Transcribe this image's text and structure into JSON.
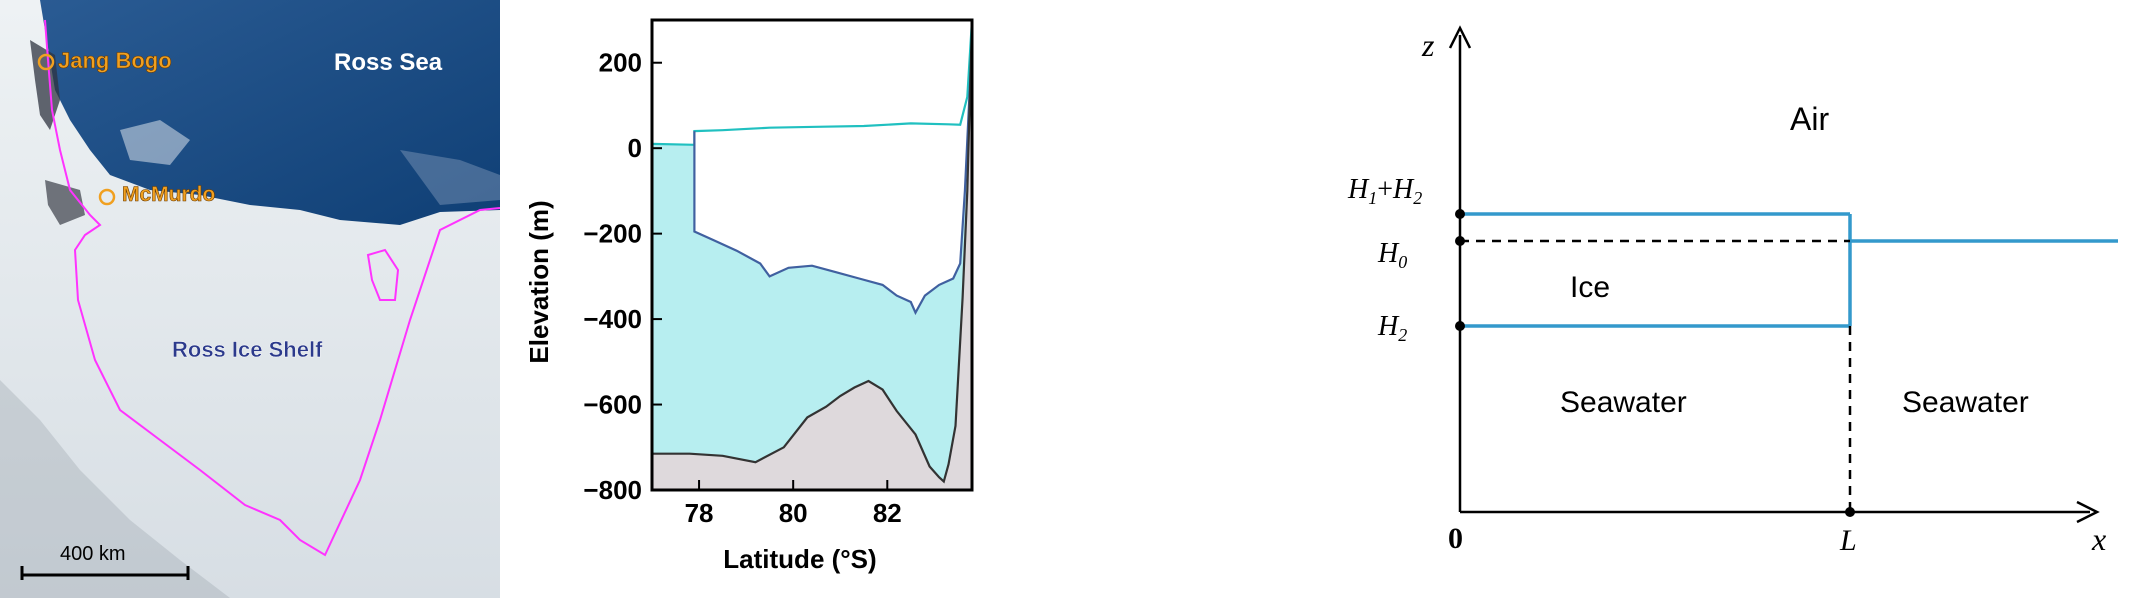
{
  "map": {
    "labels": {
      "jang_bogo": "Jang Bogo",
      "ross_sea": "Ross Sea",
      "mcmurdo": "McMurdo",
      "ross_ice_shelf": "Ross Ice Shelf",
      "scale": "400 km"
    },
    "colors": {
      "sea": "#1f4f86",
      "ice": "#e6ecef",
      "boundary": "#ff33ff",
      "station": "#f0a020"
    }
  },
  "chart_data": {
    "type": "area",
    "xlabel": "Latitude (°S)",
    "ylabel": "Elevation (m)",
    "xlim": [
      77,
      83.8
    ],
    "ylim": [
      -800,
      300
    ],
    "xticks": [
      78,
      80,
      82
    ],
    "yticks": [
      200,
      0,
      -200,
      -400,
      -600,
      -800
    ],
    "series": [
      {
        "id": "ice_surface",
        "color": "#20c0c0",
        "points": [
          [
            77,
            10
          ],
          [
            77.9,
            8
          ],
          [
            77.9,
            40
          ],
          [
            78.5,
            42
          ],
          [
            79.5,
            48
          ],
          [
            80.5,
            50
          ],
          [
            81.5,
            52
          ],
          [
            82.5,
            58
          ],
          [
            83.3,
            56
          ],
          [
            83.55,
            55
          ],
          [
            83.7,
            120
          ],
          [
            83.8,
            300
          ]
        ]
      },
      {
        "id": "ice_base",
        "color": "#4060a0",
        "points": [
          [
            77.9,
            40
          ],
          [
            77.9,
            -195
          ],
          [
            78.3,
            -215
          ],
          [
            78.8,
            -240
          ],
          [
            79.3,
            -270
          ],
          [
            79.5,
            -300
          ],
          [
            79.9,
            -280
          ],
          [
            80.4,
            -275
          ],
          [
            80.9,
            -290
          ],
          [
            81.4,
            -305
          ],
          [
            81.9,
            -320
          ],
          [
            82.2,
            -345
          ],
          [
            82.5,
            -360
          ],
          [
            82.6,
            -385
          ],
          [
            82.8,
            -345
          ],
          [
            83.1,
            -320
          ],
          [
            83.4,
            -305
          ],
          [
            83.55,
            -270
          ],
          [
            83.65,
            -100
          ],
          [
            83.8,
            250
          ]
        ]
      },
      {
        "id": "seabed",
        "color": "#333333",
        "points": [
          [
            77,
            -715
          ],
          [
            77.8,
            -715
          ],
          [
            78.5,
            -720
          ],
          [
            79.2,
            -735
          ],
          [
            79.8,
            -700
          ],
          [
            80.3,
            -630
          ],
          [
            80.7,
            -605
          ],
          [
            81.0,
            -580
          ],
          [
            81.3,
            -560
          ],
          [
            81.6,
            -545
          ],
          [
            81.9,
            -565
          ],
          [
            82.2,
            -615
          ],
          [
            82.6,
            -670
          ],
          [
            82.9,
            -745
          ],
          [
            83.1,
            -770
          ],
          [
            83.2,
            -780
          ],
          [
            83.3,
            -740
          ],
          [
            83.45,
            -650
          ],
          [
            83.6,
            -350
          ],
          [
            83.7,
            -100
          ],
          [
            83.8,
            300
          ]
        ]
      }
    ],
    "colors": {
      "water_fill": "#b7eef0",
      "bed_fill": "#ded9dc",
      "ice_fill": "#ffffff"
    }
  },
  "schematic": {
    "axes": {
      "z": "z",
      "x": "x",
      "origin": "0",
      "L": "L"
    },
    "labels": {
      "air": "Air",
      "ice": "Ice",
      "seawater_left": "Seawater",
      "seawater_right": "Seawater",
      "h1h2": "H1+H2",
      "h0": "H0",
      "h2": "H2"
    },
    "colors": {
      "ice_line": "#3399cc"
    }
  }
}
